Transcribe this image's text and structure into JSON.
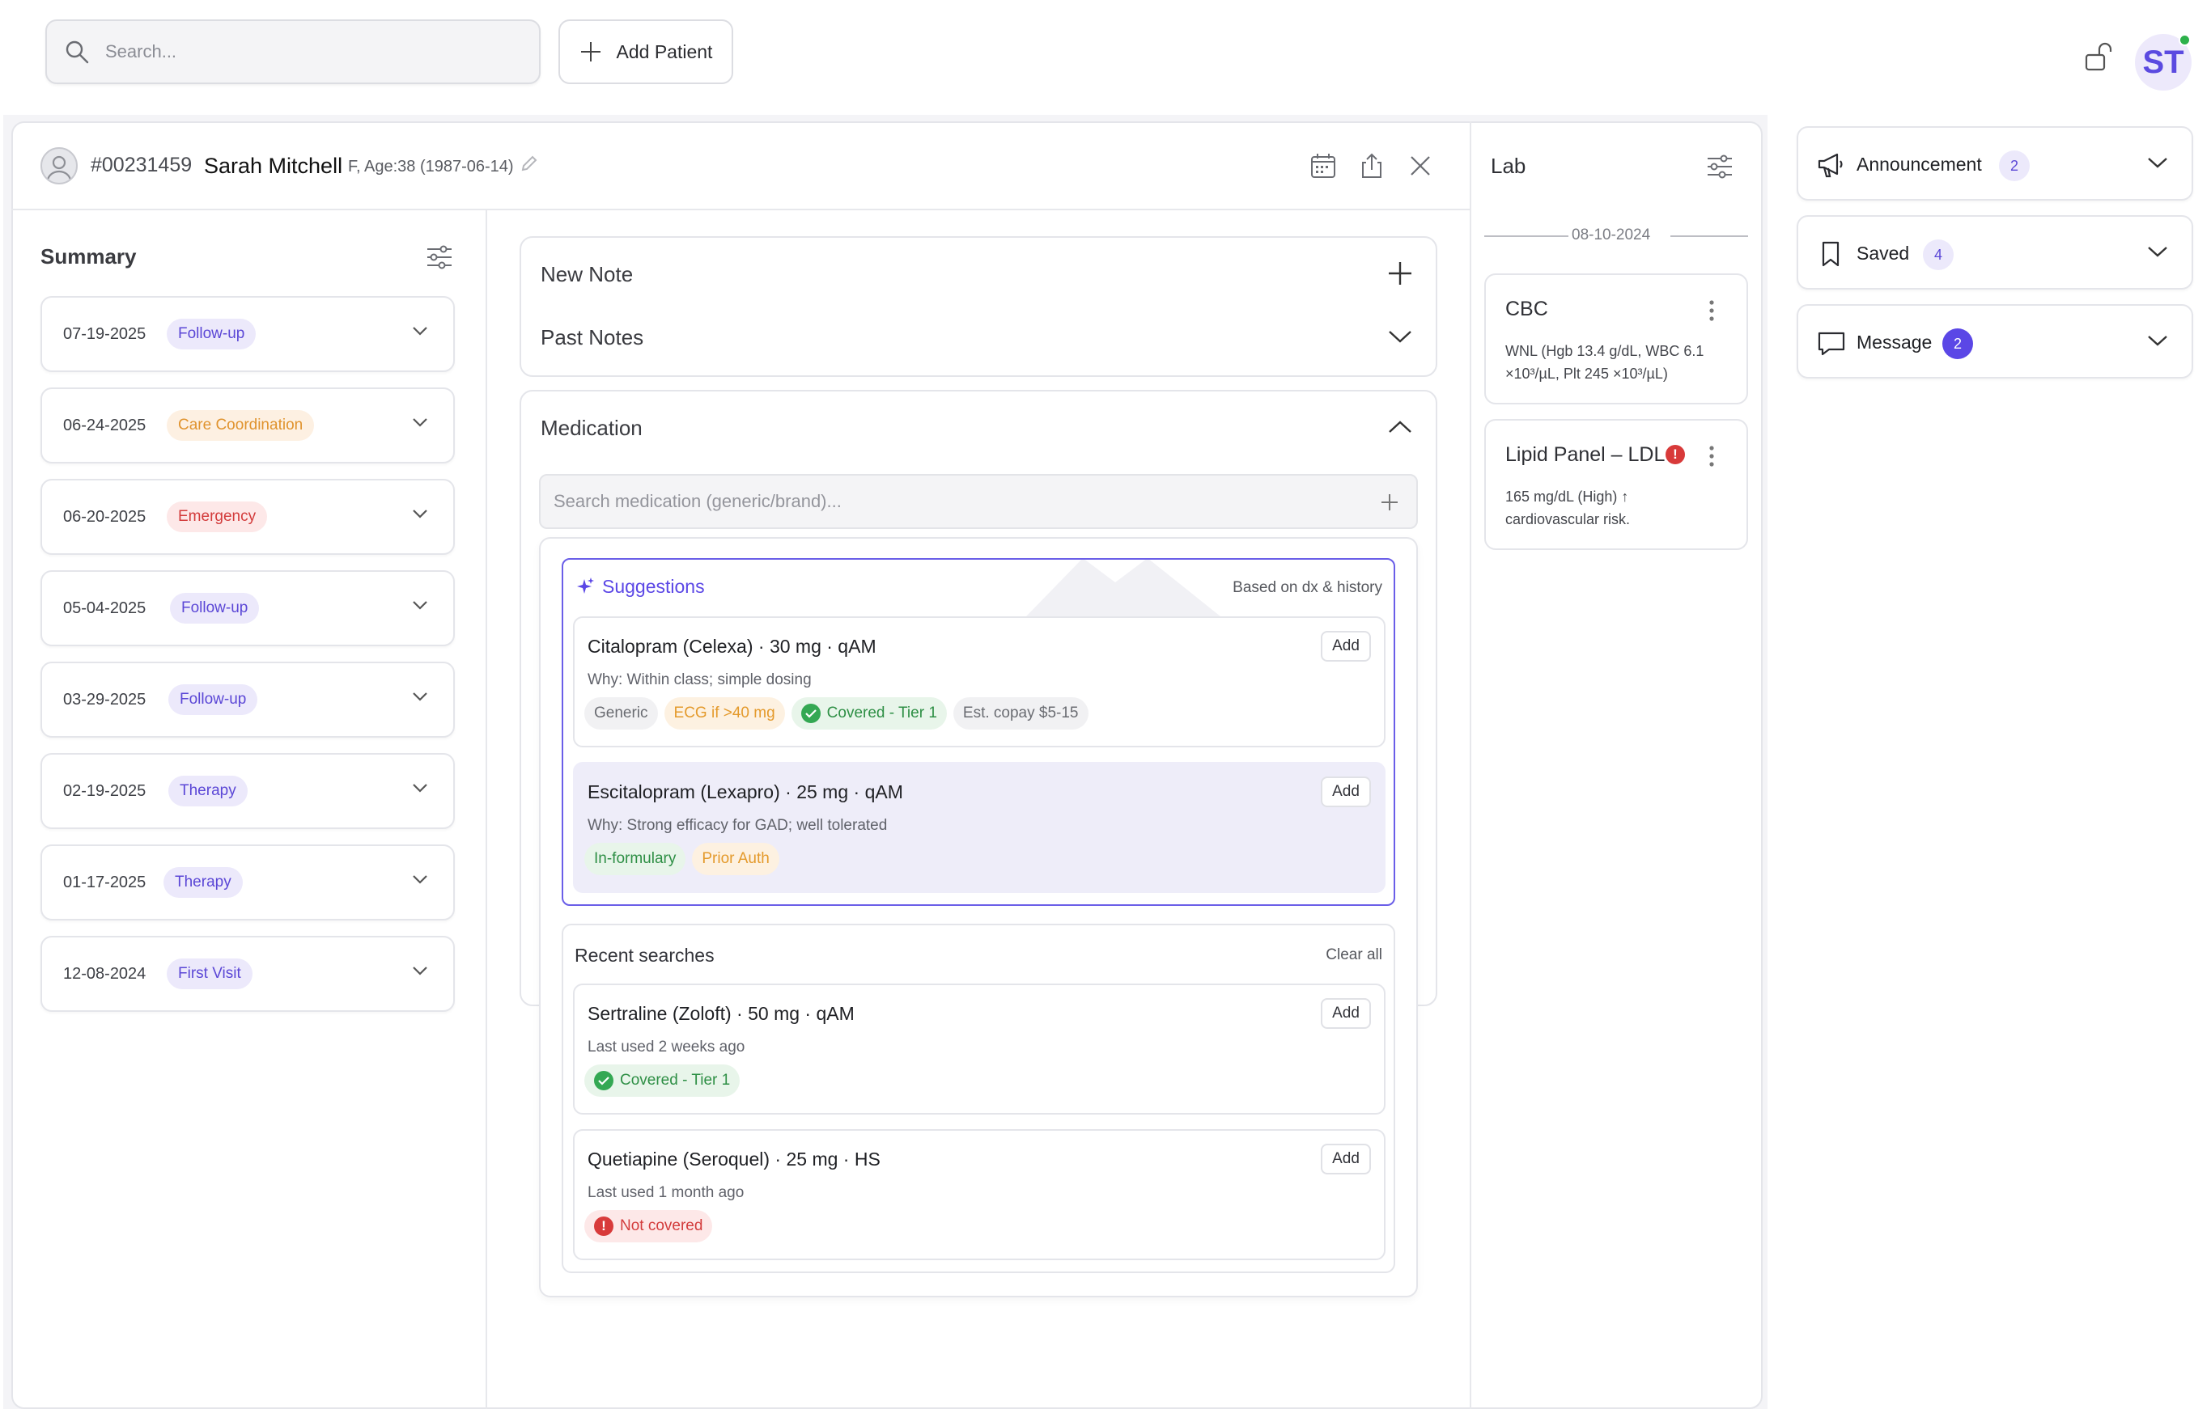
{
  "topbar": {
    "search_placeholder": "Search...",
    "add_patient_label": "Add Patient",
    "user_initials": "ST"
  },
  "patient": {
    "id": "#00231459",
    "name": "Sarah Mitchell",
    "meta": "F, Age:38 (1987-06-14)"
  },
  "summary": {
    "title": "Summary",
    "visits": [
      {
        "date": "07-19-2025",
        "type": "Follow-up"
      },
      {
        "date": "06-24-2025",
        "type": "Care Coordination"
      },
      {
        "date": "06-20-2025",
        "type": "Emergency"
      },
      {
        "date": "05-04-2025",
        "type": "Follow-up"
      },
      {
        "date": "03-29-2025",
        "type": "Follow-up"
      },
      {
        "date": "02-19-2025",
        "type": "Therapy"
      },
      {
        "date": "01-17-2025",
        "type": "Therapy"
      },
      {
        "date": "12-08-2024",
        "type": "First Visit"
      }
    ]
  },
  "notes": {
    "new_note": "New Note",
    "past_notes": "Past Notes"
  },
  "medication": {
    "title": "Medication",
    "search_placeholder": "Search medication (generic/brand)...",
    "suggestions_title": "Suggestions",
    "suggestions_basis": "Based on dx & history",
    "suggestions": [
      {
        "name": "Citalopram (Celexa) · 30 mg · qAM",
        "why": "Why: Within class; simple dosing",
        "add": "Add",
        "tags": [
          "Generic",
          "ECG if >40 mg",
          "Covered - Tier 1",
          "Est. copay $5-15"
        ]
      },
      {
        "name": "Escitalopram (Lexapro) · 25 mg · qAM",
        "why": "Why: Strong efficacy for GAD; well tolerated",
        "add": "Add",
        "tags": [
          "In-formulary",
          "Prior Auth"
        ]
      }
    ],
    "recent_title": "Recent searches",
    "clear_all": "Clear all",
    "recent": [
      {
        "name": "Sertraline (Zoloft) · 50 mg · qAM",
        "last_used": "Last used 2 weeks ago",
        "add": "Add",
        "tag": "Covered - Tier 1"
      },
      {
        "name": "Quetiapine (Seroquel) · 25 mg · HS",
        "last_used": "Last used 1 month ago",
        "add": "Add",
        "tag": "Not covered"
      }
    ]
  },
  "lab": {
    "title": "Lab",
    "date": "08-10-2024",
    "results": [
      {
        "name": "CBC",
        "text": "WNL (Hgb 13.4 g/dL, WBC 6.1 ×10³/µL, Plt 245 ×10³/µL)"
      },
      {
        "name": "Lipid Panel – LDL",
        "text": "165 mg/dL (High) ↑ cardiovascular risk.",
        "flag": "!"
      }
    ]
  },
  "side_panels": [
    {
      "label": "Announcement",
      "count": "2",
      "icon": "megaphone-icon"
    },
    {
      "label": "Saved",
      "count": "4",
      "icon": "bookmark-icon"
    },
    {
      "label": "Message",
      "count": "2",
      "icon": "message-icon"
    }
  ],
  "colors": {
    "accent": "#5b47e6",
    "follow_up": "#5b47d6",
    "care": "#e0932e",
    "emergency": "#d33c3c",
    "covered": "#34a853"
  }
}
